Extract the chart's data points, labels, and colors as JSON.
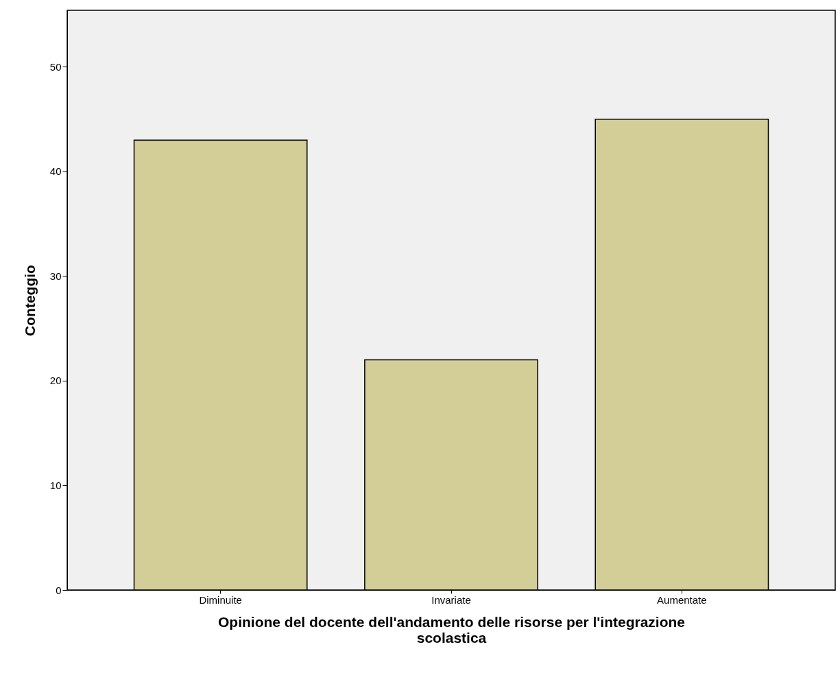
{
  "chart_data": {
    "type": "bar",
    "xlabel": "Opinione del docente dell'andamento delle risorse per l'integrazione scolastica",
    "ylabel": "Conteggio",
    "categories": [
      "Diminuite",
      "Invariate",
      "Aumentate"
    ],
    "values": [
      43,
      22,
      45
    ],
    "color": "#d3ce97",
    "ylim": [
      0,
      55.4
    ],
    "yticks": [
      0,
      10,
      20,
      30,
      40,
      50
    ],
    "grid": false
  }
}
